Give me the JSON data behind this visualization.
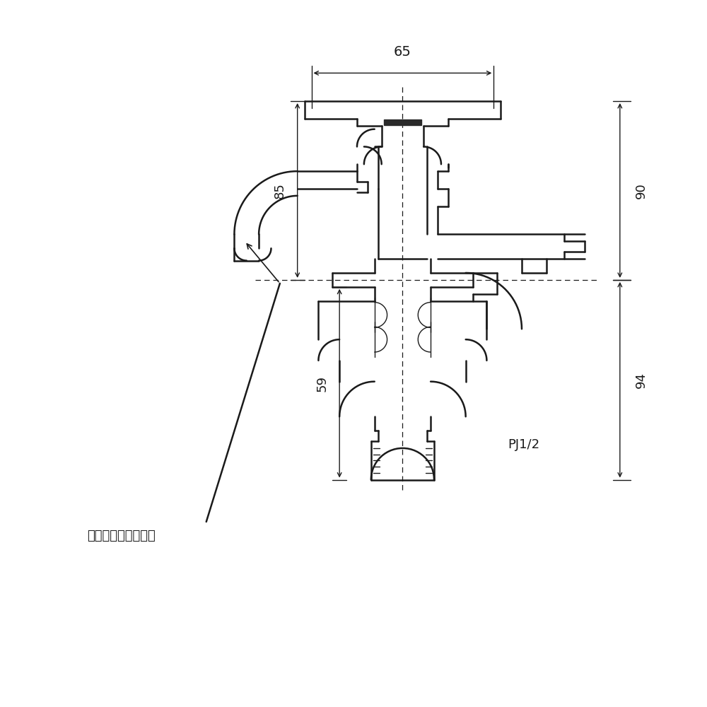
{
  "background_color": "#ffffff",
  "line_color": "#1a1a1a",
  "annotation_text": "星形整流器付パイプ",
  "pj_text": "PJ1/2",
  "dim_65": "65",
  "dim_85": "85",
  "dim_90": "90",
  "dim_94": "94",
  "dim_59": "59",
  "fig_width": 10,
  "fig_height": 10
}
